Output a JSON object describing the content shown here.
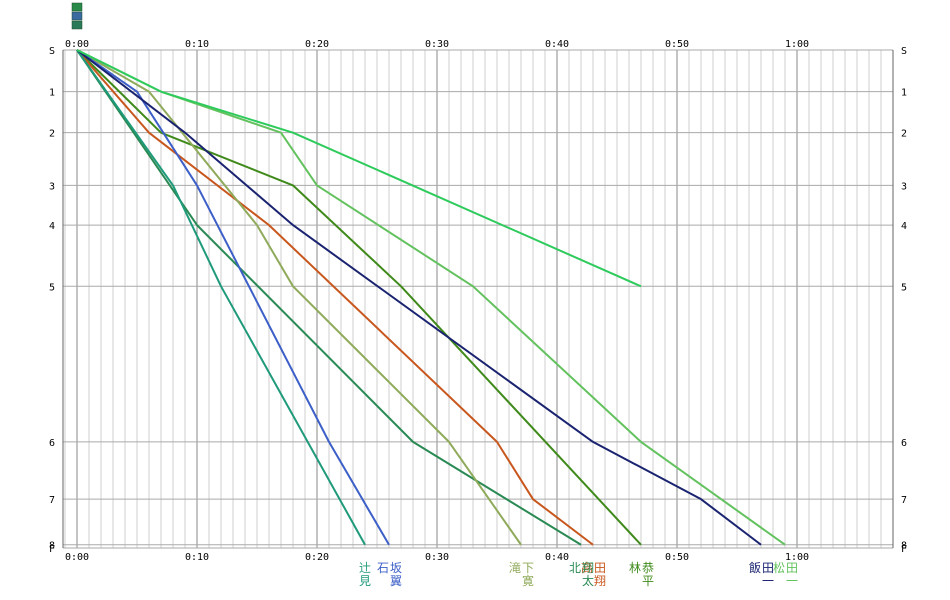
{
  "chart_data": {
    "type": "line",
    "title": "",
    "xlabel": "",
    "ylabel": "",
    "xlim": [
      "0:00",
      "1:10"
    ],
    "x_ticks": [
      "0:00",
      "0:10",
      "0:20",
      "0:30",
      "0:40",
      "0:50",
      "1:00"
    ],
    "stations": [
      "S",
      "1",
      "2",
      "3",
      "4",
      "5",
      "6",
      "7",
      "8",
      "F"
    ],
    "station_positions": [
      0,
      0.64,
      1.27,
      2.08,
      2.69,
      3.63,
      6.02,
      6.9,
      7.6,
      7.65
    ],
    "grid": true,
    "top_marker_colors": [
      "#2a8a4a",
      "#3a6aa0",
      "#2a7a5a"
    ],
    "series": [
      {
        "name": "松田一",
        "color": "#63c25e",
        "stations": [
          0,
          1,
          2,
          3,
          5,
          6,
          8
        ],
        "times": [
          "0:00",
          "0:07",
          "0:17",
          "0:20",
          "0:33",
          "0:47",
          "0:59"
        ]
      },
      {
        "name": "林恭平",
        "color": "#3f8a1a",
        "stations": [
          0,
          2,
          3,
          5,
          8
        ],
        "times": [
          "0:00",
          "0:07",
          "0:18",
          "0:27",
          "0:47"
        ]
      },
      {
        "name": "高田翔",
        "color": "#c8571e",
        "stations": [
          0,
          2,
          4,
          6,
          7,
          8
        ],
        "times": [
          "0:00",
          "0:06",
          "0:16",
          "0:35",
          "0:38",
          "0:43"
        ]
      },
      {
        "name": "北翔太",
        "color": "#2a8a54",
        "stations": [
          0,
          4,
          6,
          8
        ],
        "times": [
          "0:00",
          "0:10",
          "0:28",
          "0:42"
        ]
      },
      {
        "name": "滝下寛",
        "color": "#8faa5a",
        "stations": [
          0,
          1,
          4,
          5,
          6,
          8
        ],
        "times": [
          "0:00",
          "0:06",
          "0:15",
          "0:18",
          "0:31",
          "0:37"
        ]
      },
      {
        "name": "石坂翼",
        "color": "#3c5fc8",
        "stations": [
          0,
          1,
          3,
          6,
          8
        ],
        "times": [
          "0:00",
          "0:05",
          "0:10",
          "0:21",
          "0:26"
        ]
      },
      {
        "name": "辻見",
        "color": "#1f9a7a",
        "stations": [
          0,
          3,
          5,
          8
        ],
        "times": [
          "0:00",
          "0:08",
          "0:12",
          "0:24"
        ]
      },
      {
        "name": "飯田一",
        "color": "#1a2370",
        "stations": [
          0,
          2,
          4,
          6,
          7,
          8
        ],
        "times": [
          "0:00",
          "0:09",
          "0:18",
          "0:43",
          "0:52",
          "0:57"
        ]
      },
      {
        "name": "",
        "color": "#2ecb5c",
        "stations": [
          0,
          1,
          2,
          5
        ],
        "times": [
          "0:00",
          "0:07",
          "0:18",
          "0:47"
        ]
      }
    ]
  }
}
